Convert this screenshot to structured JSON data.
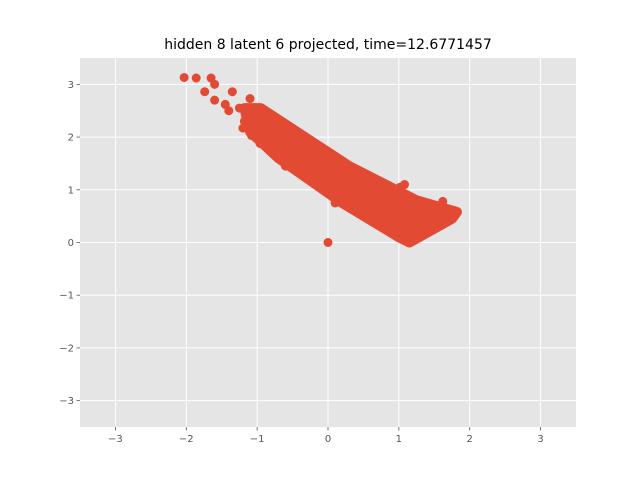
{
  "chart_data": {
    "type": "scatter",
    "title": "hidden 8 latent 6 projected, time=12.6771457",
    "xlabel": "",
    "ylabel": "",
    "xlim": [
      -3.5,
      3.5
    ],
    "ylim": [
      -3.5,
      3.5
    ],
    "xticks": [
      -3,
      -2,
      -1,
      0,
      1,
      2,
      3
    ],
    "yticks": [
      -3,
      -2,
      -1,
      0,
      1,
      2,
      3
    ],
    "xtick_labels": [
      "−3",
      "−2",
      "−1",
      "0",
      "1",
      "2",
      "3"
    ],
    "ytick_labels": [
      "−3",
      "−2",
      "−1",
      "0",
      "1",
      "2",
      "3"
    ],
    "grid": true,
    "colors": {
      "points": "#e24a33",
      "plot_background": "#e5e5e5",
      "grid": "#ffffff",
      "figure_background": "#ffffff"
    },
    "points": [
      [
        -2.03,
        3.13
      ],
      [
        -1.86,
        3.12
      ],
      [
        -1.65,
        3.12
      ],
      [
        -1.6,
        3.0
      ],
      [
        -1.74,
        2.86
      ],
      [
        -1.6,
        2.7
      ],
      [
        -1.45,
        2.62
      ],
      [
        -1.35,
        2.86
      ],
      [
        -1.4,
        2.5
      ],
      [
        -1.1,
        2.73
      ],
      [
        -1.25,
        2.55
      ],
      [
        -0.98,
        2.55
      ],
      [
        -1.18,
        2.3
      ],
      [
        -1.1,
        2.2
      ],
      [
        -1.2,
        2.17
      ],
      [
        -0.96,
        2.39
      ],
      [
        -0.82,
        2.37
      ],
      [
        -1.08,
        2.03
      ],
      [
        -0.96,
        1.88
      ],
      [
        -0.82,
        1.8
      ],
      [
        -0.76,
        1.95
      ],
      [
        -0.62,
        2.24
      ],
      [
        -0.6,
        1.85
      ],
      [
        -0.7,
        1.6
      ],
      [
        -0.5,
        1.7
      ],
      [
        -0.48,
        1.9
      ],
      [
        -0.55,
        2.05
      ],
      [
        -0.38,
        1.72
      ],
      [
        -0.3,
        1.6
      ],
      [
        -0.24,
        1.8
      ],
      [
        -0.25,
        1.45
      ],
      [
        -0.12,
        1.55
      ],
      [
        -0.26,
        1.35
      ],
      [
        -0.18,
        1.2
      ],
      [
        -0.1,
        1.3
      ],
      [
        -0.04,
        1.65
      ],
      [
        0.0,
        1.45
      ],
      [
        0.05,
        1.2
      ],
      [
        0.1,
        1.55
      ],
      [
        0.1,
        1.05
      ],
      [
        0.16,
        1.3
      ],
      [
        0.24,
        1.15
      ],
      [
        0.3,
        1.4
      ],
      [
        0.35,
        0.98
      ],
      [
        0.32,
        0.8
      ],
      [
        0.42,
        1.1
      ],
      [
        0.4,
        1.35
      ],
      [
        0.5,
        0.88
      ],
      [
        0.54,
        0.7
      ],
      [
        0.6,
        1.0
      ],
      [
        0.7,
        0.85
      ],
      [
        0.75,
        0.65
      ],
      [
        0.8,
        0.5
      ],
      [
        0.84,
        0.75
      ],
      [
        0.9,
        0.45
      ],
      [
        0.95,
        0.6
      ],
      [
        1.0,
        0.3
      ],
      [
        1.05,
        0.15
      ],
      [
        1.1,
        0.05
      ],
      [
        1.14,
        0.2
      ],
      [
        1.2,
        0.1
      ],
      [
        1.25,
        0.3
      ],
      [
        1.3,
        0.45
      ],
      [
        1.35,
        0.2
      ],
      [
        1.4,
        0.3
      ],
      [
        1.45,
        0.5
      ],
      [
        1.5,
        0.35
      ],
      [
        1.55,
        0.42
      ],
      [
        1.6,
        0.55
      ],
      [
        1.62,
        0.78
      ],
      [
        1.68,
        0.45
      ],
      [
        1.74,
        0.5
      ],
      [
        1.8,
        0.54
      ],
      [
        -0.83,
        2.05
      ],
      [
        -0.6,
        1.45
      ],
      [
        -0.35,
        1.5
      ],
      [
        -0.05,
        1.0
      ],
      [
        0.2,
        0.9
      ],
      [
        0.45,
        0.6
      ],
      [
        0.68,
        1.17
      ],
      [
        0.75,
        1.0
      ],
      [
        1.02,
        1.05
      ],
      [
        1.08,
        1.1
      ],
      [
        0.85,
        0.95
      ],
      [
        1.25,
        0.7
      ],
      [
        1.2,
        0.8
      ],
      [
        0.0,
        0.0
      ],
      [
        0.55,
        1.1
      ],
      [
        0.65,
        0.4
      ],
      [
        0.95,
        0.15
      ],
      [
        1.15,
        0.55
      ],
      [
        1.38,
        0.6
      ],
      [
        -0.3,
        1.25
      ],
      [
        0.1,
        0.75
      ],
      [
        -0.15,
        1.7
      ]
    ]
  }
}
